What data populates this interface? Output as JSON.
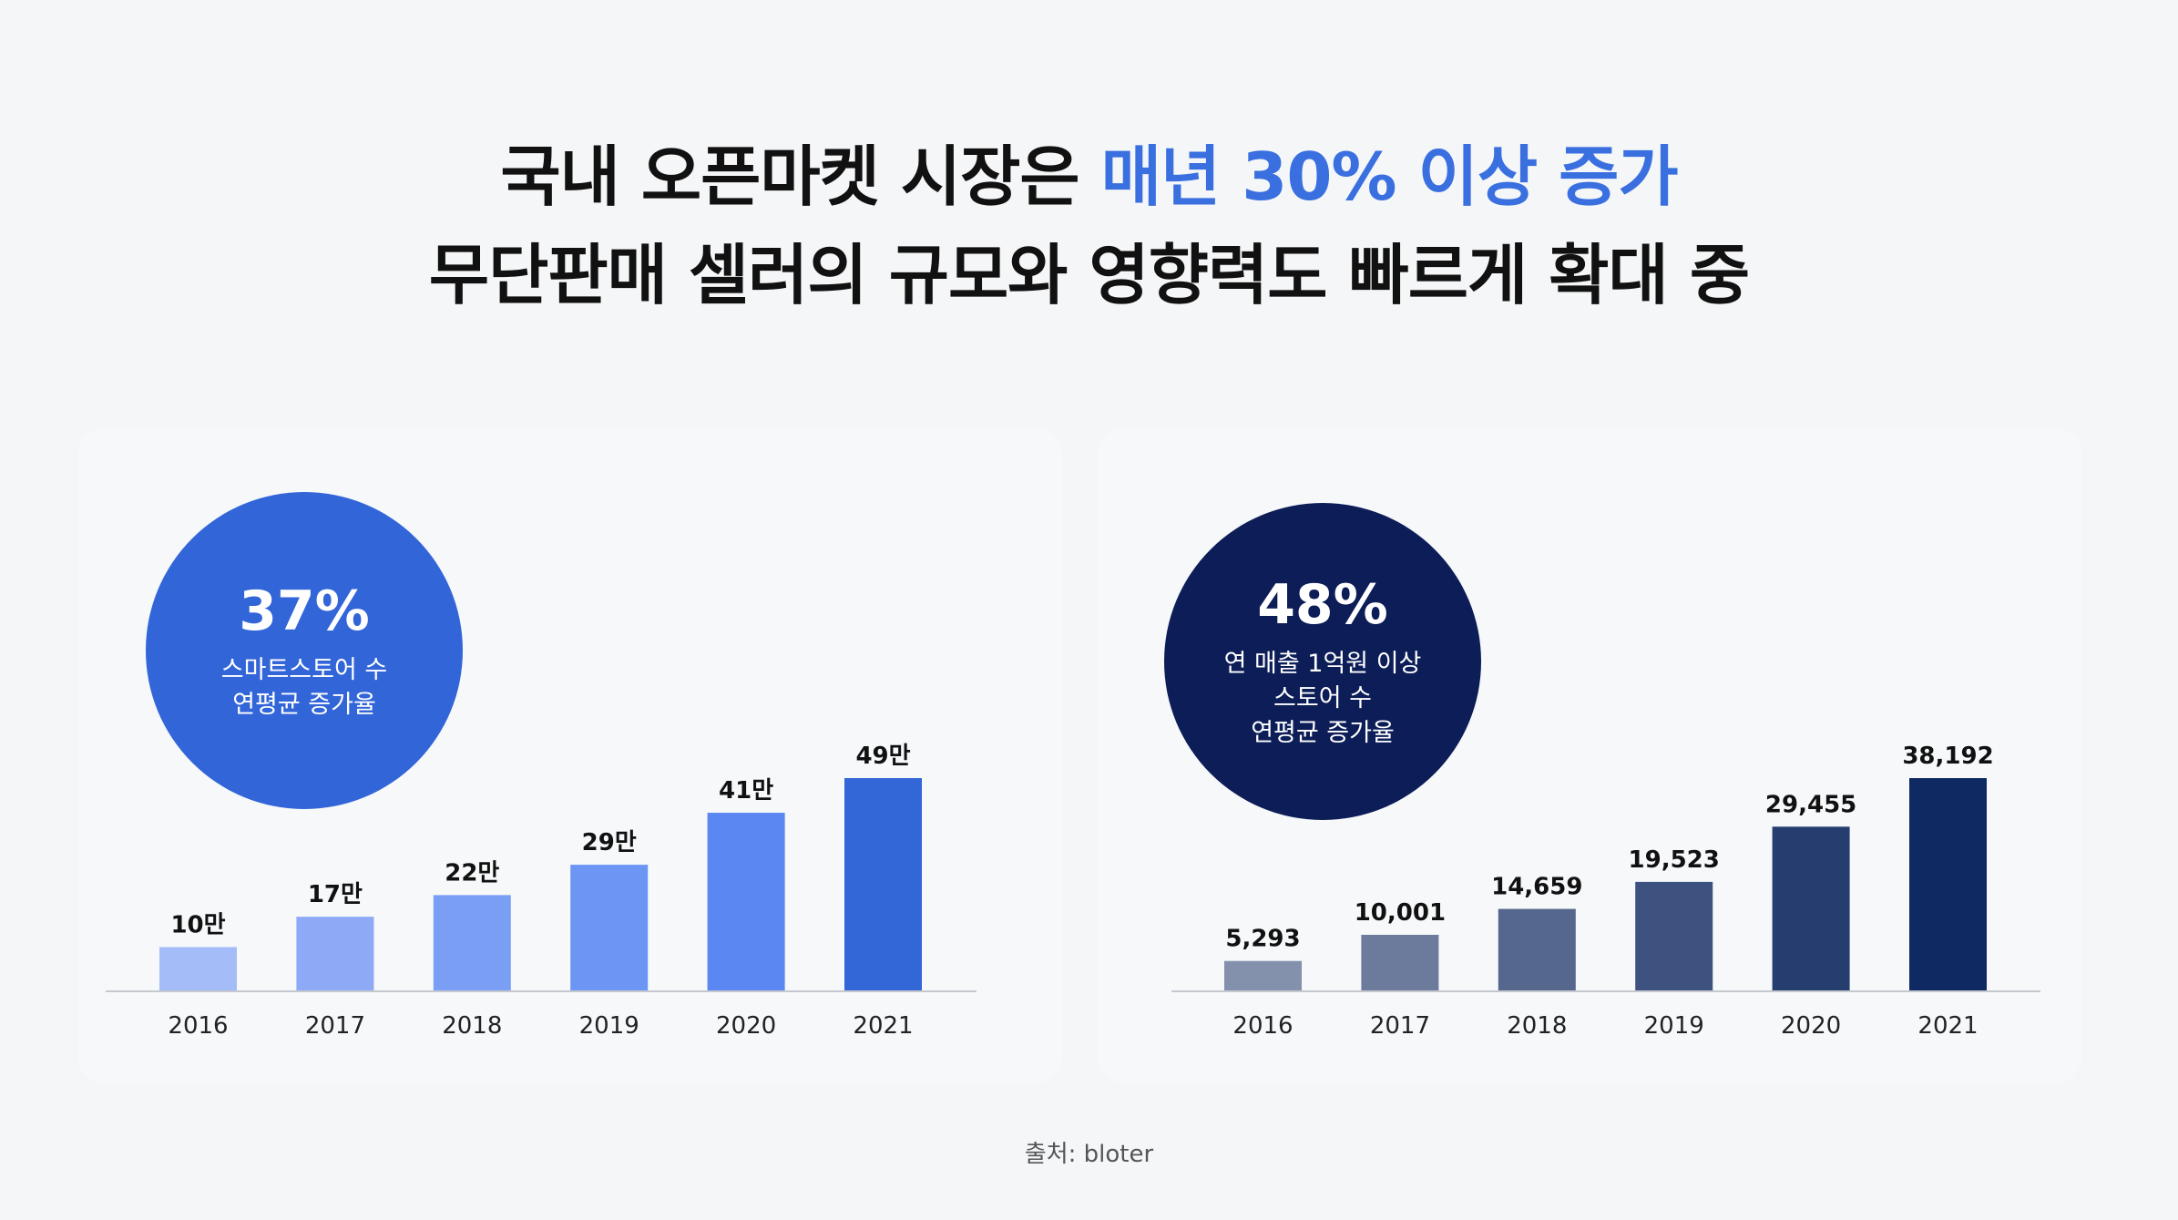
{
  "title": {
    "line1_prefix": "국내 오픈마켓 시장은 ",
    "line1_accent": "매년 30% 이상 증가",
    "line2": "무단판매 셀러의 규모와 영향력도 빠르게 확대 중",
    "accent_color": "#3a6fe0"
  },
  "left": {
    "pct": "37%",
    "desc": "스마트스토어 수\n연평균 증가율",
    "circle_color": "#3265d8"
  },
  "right": {
    "pct": "48%",
    "desc": "연 매출 1억원 이상\n스토어 수\n연평균 증가율",
    "circle_color": "#0c1d57"
  },
  "source": "출처: bloter",
  "chart_data": [
    {
      "type": "bar",
      "categories": [
        "2016",
        "2017",
        "2018",
        "2019",
        "2020",
        "2021"
      ],
      "values": [
        10,
        17,
        22,
        29,
        41,
        49
      ],
      "labels": [
        "10만",
        "17만",
        "22만",
        "29만",
        "41만",
        "49만"
      ],
      "colors": [
        "#a4bdf8",
        "#8eaaf6",
        "#7b9ef5",
        "#6d95f4",
        "#5b87f3",
        "#3366d6"
      ],
      "ylim": [
        0,
        49
      ]
    },
    {
      "type": "bar",
      "categories": [
        "2016",
        "2017",
        "2018",
        "2019",
        "2020",
        "2021"
      ],
      "values": [
        5293,
        10001,
        14659,
        19523,
        29455,
        38192
      ],
      "labels": [
        "5,293",
        "10,001",
        "14,659",
        "19,523",
        "29,455",
        "38,192"
      ],
      "colors": [
        "#8391ad",
        "#6c7b9c",
        "#55678d",
        "#3d527f",
        "#263d70",
        "#0f2a62"
      ],
      "ylim": [
        0,
        38192
      ]
    }
  ]
}
